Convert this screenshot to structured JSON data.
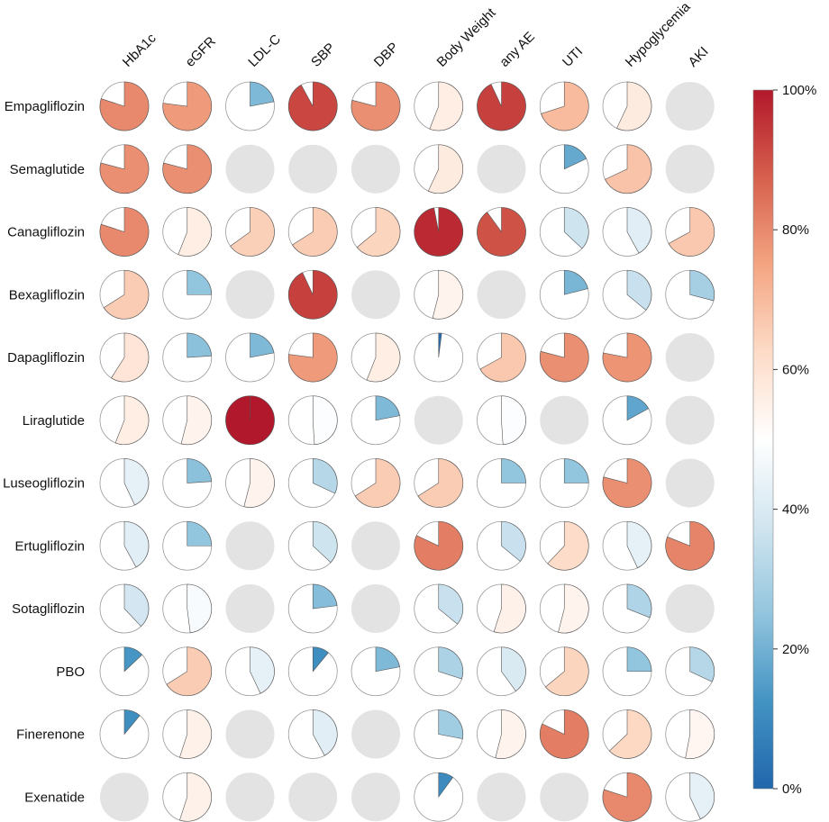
{
  "chart_data": {
    "type": "pie-matrix",
    "title": "",
    "rows": [
      "Empagliflozin",
      "Semaglutide",
      "Canagliflozin",
      "Bexagliflozin",
      "Dapagliflozin",
      "Liraglutide",
      "Luseogliflozin",
      "Ertugliflozin",
      "Sotagliflozin",
      "PBO",
      "Finerenone",
      "Exenatide"
    ],
    "columns": [
      "HbA1c",
      "eGFR",
      "LDL-C",
      "SBP",
      "DBP",
      "Body Weight",
      "any AE",
      "UTI",
      "Hypoglycemia",
      "AKI"
    ],
    "values": [
      [
        80,
        77,
        22,
        92,
        79,
        56,
        93,
        70,
        57,
        null
      ],
      [
        79,
        79,
        null,
        null,
        null,
        57,
        null,
        18,
        68,
        null
      ],
      [
        80,
        56,
        65,
        66,
        64,
        97,
        90,
        37,
        42,
        67
      ],
      [
        66,
        25,
        null,
        93,
        null,
        54,
        null,
        21,
        36,
        29
      ],
      [
        59,
        24,
        22,
        77,
        56,
        2,
        67,
        79,
        78,
        null
      ],
      [
        56,
        54,
        100,
        49,
        22,
        null,
        49,
        null,
        17,
        null
      ],
      [
        43,
        24,
        54,
        32,
        66,
        66,
        25,
        25,
        79,
        null
      ],
      [
        42,
        25,
        null,
        37,
        null,
        82,
        36,
        62,
        43,
        81
      ],
      [
        38,
        48,
        null,
        23,
        null,
        36,
        55,
        54,
        31,
        null
      ],
      [
        13,
        66,
        43,
        11,
        22,
        30,
        40,
        64,
        25,
        32
      ],
      [
        11,
        55,
        null,
        42,
        null,
        28,
        54,
        82,
        63,
        53
      ],
      [
        null,
        55,
        null,
        null,
        null,
        10,
        null,
        null,
        80,
        43
      ]
    ],
    "colorbar": {
      "ticks": [
        "0%",
        "20%",
        "40%",
        "60%",
        "80%",
        "100%"
      ],
      "tick_values": [
        0,
        20,
        40,
        60,
        80,
        100
      ],
      "colors": [
        "#2166ac",
        "#4393c3",
        "#92c5de",
        "#d1e5f0",
        "#ffffff",
        "#fddbc7",
        "#f4a582",
        "#d6604d",
        "#b2182b"
      ]
    },
    "legend_position": "right",
    "empty_color": "#e3e3e3"
  }
}
